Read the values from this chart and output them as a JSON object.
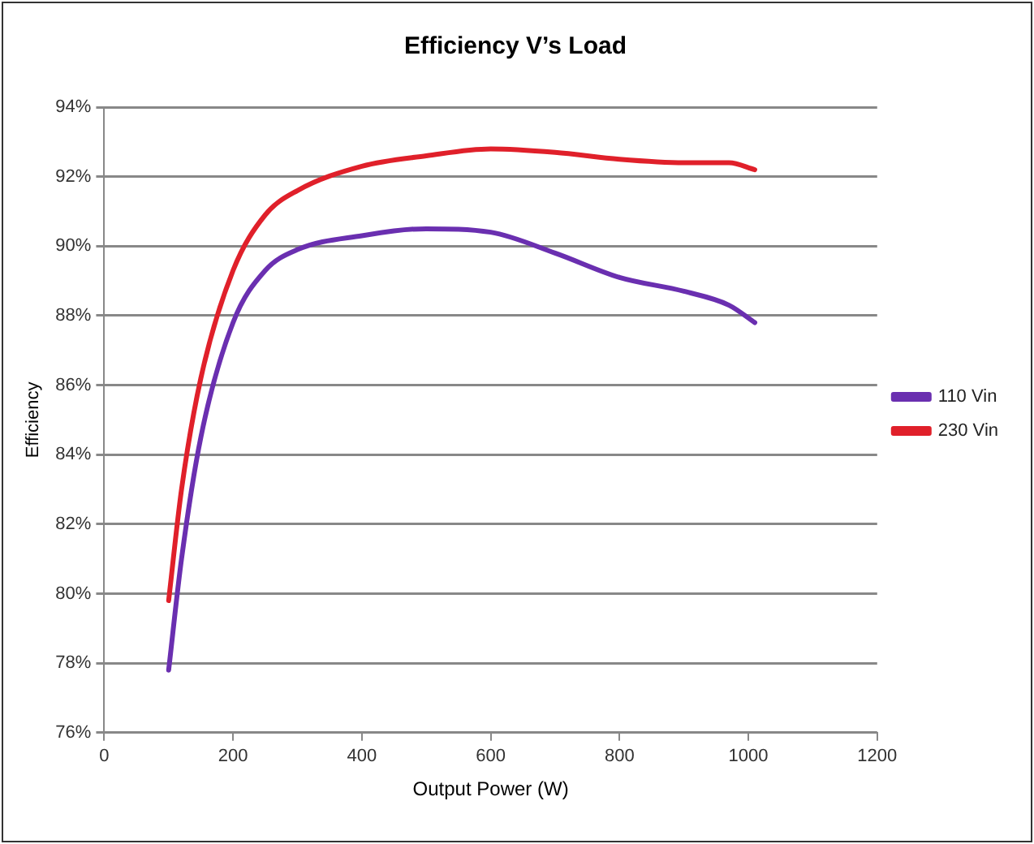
{
  "chart_data": {
    "type": "line",
    "title": "Efficiency V’s Load",
    "xlabel": "Output Power (W)",
    "ylabel": "Efficiency",
    "xlim": [
      0,
      1200
    ],
    "xticks": [
      0,
      200,
      400,
      600,
      800,
      1000,
      1200
    ],
    "ylim": [
      76,
      94
    ],
    "yticks": [
      {
        "value": 76,
        "label": "76%"
      },
      {
        "value": 78,
        "label": "78%"
      },
      {
        "value": 80,
        "label": "80%"
      },
      {
        "value": 82,
        "label": "82%"
      },
      {
        "value": 84,
        "label": "84%"
      },
      {
        "value": 86,
        "label": "86%"
      },
      {
        "value": 88,
        "label": "88%"
      },
      {
        "value": 90,
        "label": "90%"
      },
      {
        "value": 92,
        "label": "92%"
      },
      {
        "value": 94,
        "label": "94%"
      }
    ],
    "grid": "y",
    "legend": "right",
    "marker": "none",
    "line_style": "solid",
    "series": [
      {
        "name": "110 Vin",
        "color": "#6a2fb0",
        "x": [
          100,
          120,
          150,
          200,
          250,
          300,
          400,
          500,
          600,
          700,
          800,
          900,
          970,
          1010
        ],
        "values": [
          77.8,
          81,
          84.5,
          87.8,
          89.3,
          89.9,
          90.3,
          90.5,
          90.4,
          89.8,
          89.1,
          88.7,
          88.3,
          87.8
        ]
      },
      {
        "name": "230 Vin",
        "color": "#e0202a",
        "x": [
          100,
          120,
          150,
          200,
          250,
          300,
          400,
          500,
          600,
          700,
          800,
          900,
          970,
          1010
        ],
        "values": [
          79.8,
          83,
          86.2,
          89.3,
          90.9,
          91.6,
          92.3,
          92.6,
          92.8,
          92.7,
          92.5,
          92.4,
          92.4,
          92.2
        ]
      }
    ]
  }
}
